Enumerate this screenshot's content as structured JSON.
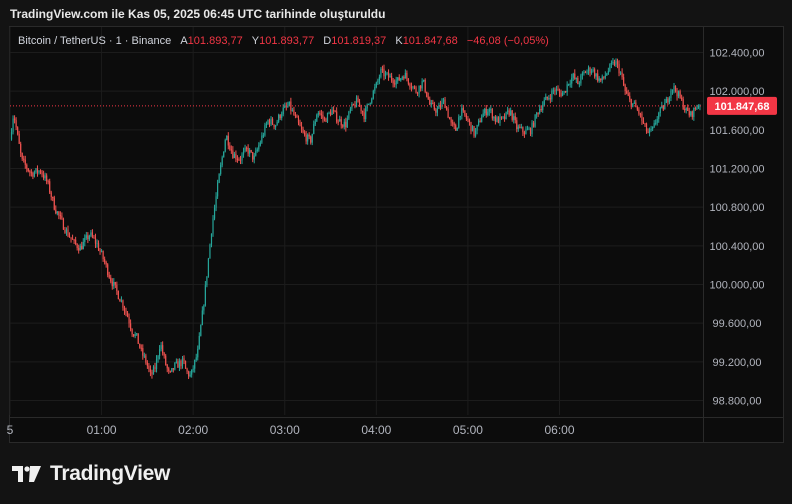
{
  "caption": "TradingView.com ile Kas 05, 2025 06:45 UTC tarihinde oluşturuldu",
  "legend": {
    "symbol": "Bitcoin / TetherUS · 1 · Binance",
    "open_label": "A",
    "open": "101.893,77",
    "high_label": "Y",
    "high": "101.893,77",
    "low_label": "D",
    "low": "101.819,37",
    "close_label": "K",
    "close": "101.847,68",
    "change": "−46,08 (−0,05%)"
  },
  "brand": {
    "name": "TradingView"
  },
  "colors": {
    "up": "#26a69a",
    "down": "#ef5350",
    "price_line": "#f23645",
    "grid": "#1c1c1c"
  },
  "chart_data": {
    "type": "candlestick",
    "interval": "1 minute",
    "y_ticks": [
      102400,
      102000,
      101600,
      101200,
      100800,
      100400,
      100000,
      99600,
      99200,
      98800
    ],
    "y_tick_labels": [
      "102.400,00",
      "102.000,00",
      "101.600,00",
      "101.200,00",
      "100.800,00",
      "100.400,00",
      "100.000,00",
      "99.600,00",
      "99.200,00",
      "98.800,00"
    ],
    "x_tick_labels": [
      "5",
      "01:00",
      "02:00",
      "03:00",
      "04:00",
      "05:00",
      "06:00"
    ],
    "x_tick_minutes": [
      0,
      60,
      120,
      180,
      240,
      300,
      360
    ],
    "last_price": 101847.68,
    "last_price_label": "101.847,68",
    "ylim": [
      98650,
      102550
    ],
    "xlim_minutes": [
      0,
      454
    ],
    "close_path": [
      [
        0,
        101500
      ],
      [
        3,
        101780
      ],
      [
        10,
        101280
      ],
      [
        18,
        101150
      ],
      [
        26,
        101180
      ],
      [
        32,
        101050
      ],
      [
        38,
        100800
      ],
      [
        44,
        100650
      ],
      [
        48,
        100550
      ],
      [
        55,
        100420
      ],
      [
        60,
        100380
      ],
      [
        68,
        100520
      ],
      [
        74,
        100420
      ],
      [
        80,
        100250
      ],
      [
        86,
        100050
      ],
      [
        92,
        99900
      ],
      [
        96,
        99800
      ],
      [
        100,
        99680
      ],
      [
        104,
        99520
      ],
      [
        108,
        99450
      ],
      [
        112,
        99300
      ],
      [
        116,
        99200
      ],
      [
        120,
        99050
      ],
      [
        124,
        99150
      ],
      [
        128,
        99400
      ],
      [
        132,
        99200
      ],
      [
        136,
        99050
      ],
      [
        140,
        99150
      ],
      [
        144,
        99180
      ],
      [
        148,
        99200
      ],
      [
        150,
        99100
      ],
      [
        154,
        99050
      ],
      [
        160,
        99300
      ],
      [
        166,
        99900
      ],
      [
        172,
        100600
      ],
      [
        178,
        101100
      ],
      [
        184,
        101550
      ],
      [
        190,
        101350
      ],
      [
        196,
        101300
      ],
      [
        202,
        101400
      ],
      [
        208,
        101300
      ],
      [
        214,
        101500
      ],
      [
        220,
        101700
      ],
      [
        226,
        101650
      ],
      [
        232,
        101800
      ],
      [
        238,
        101850
      ],
      [
        244,
        101700
      ],
      [
        250,
        101550
      ],
      [
        256,
        101480
      ],
      [
        262,
        101800
      ],
      [
        268,
        101700
      ],
      [
        274,
        101800
      ],
      [
        280,
        101700
      ],
      [
        286,
        101650
      ],
      [
        290,
        101800
      ],
      [
        296,
        101900
      ],
      [
        302,
        101750
      ],
      [
        308,
        101950
      ],
      [
        312,
        102050
      ],
      [
        316,
        102200
      ],
      [
        322,
        102150
      ],
      [
        330,
        102100
      ],
      [
        336,
        102180
      ],
      [
        340,
        102100
      ],
      [
        346,
        102000
      ],
      [
        352,
        102100
      ],
      [
        358,
        101850
      ],
      [
        364,
        101800
      ],
      [
        370,
        101900
      ],
      [
        376,
        101650
      ],
      [
        380,
        101600
      ],
      [
        384,
        101800
      ],
      [
        390,
        101700
      ],
      [
        396,
        101550
      ],
      [
        402,
        101750
      ],
      [
        408,
        101820
      ],
      [
        414,
        101700
      ],
      [
        420,
        101700
      ],
      [
        426,
        101800
      ],
      [
        432,
        101620
      ],
      [
        438,
        101580
      ],
      [
        444,
        101600
      ],
      [
        450,
        101800
      ],
      [
        456,
        101900
      ],
      [
        460,
        101950
      ],
      [
        464,
        102020
      ],
      [
        468,
        101980
      ],
      [
        472,
        101980
      ],
      [
        476,
        102100
      ],
      [
        480,
        102150
      ],
      [
        484,
        102080
      ],
      [
        490,
        102200
      ],
      [
        496,
        102230
      ],
      [
        500,
        102150
      ],
      [
        504,
        102100
      ],
      [
        508,
        102180
      ],
      [
        512,
        102250
      ],
      [
        516,
        102300
      ],
      [
        520,
        102200
      ],
      [
        524,
        102000
      ],
      [
        528,
        101900
      ],
      [
        532,
        101850
      ],
      [
        536,
        101780
      ],
      [
        540,
        101650
      ],
      [
        544,
        101560
      ],
      [
        548,
        101600
      ],
      [
        552,
        101750
      ],
      [
        556,
        101820
      ],
      [
        560,
        101900
      ],
      [
        564,
        102050
      ],
      [
        568,
        102000
      ],
      [
        572,
        101900
      ],
      [
        576,
        101800
      ],
      [
        580,
        101750
      ],
      [
        584,
        101820
      ],
      [
        588,
        101880
      ]
    ]
  }
}
